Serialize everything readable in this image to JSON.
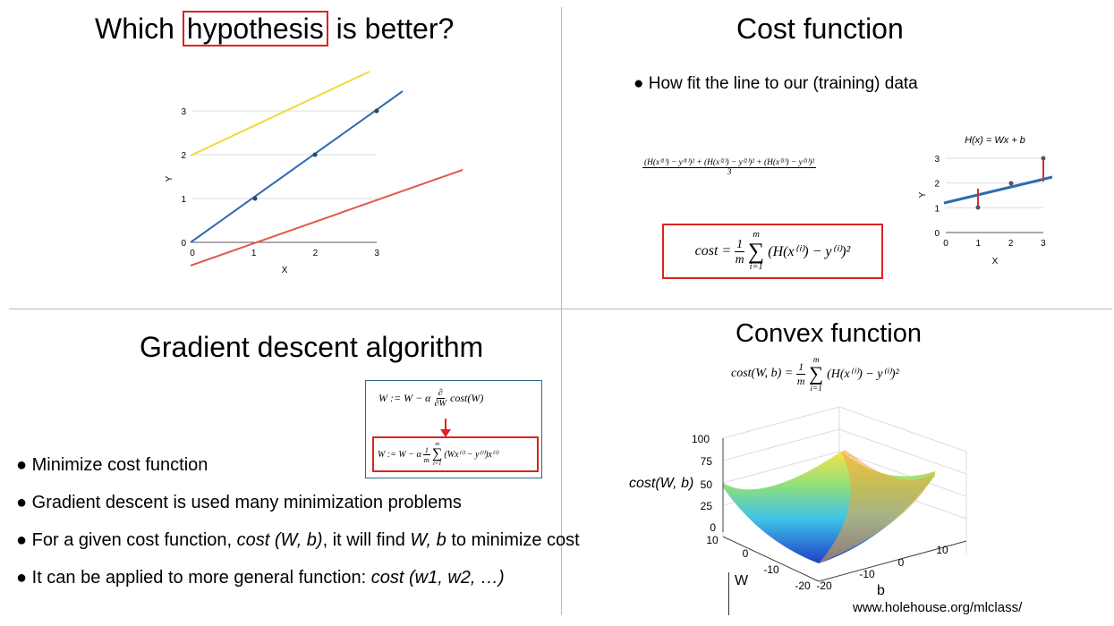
{
  "slides": [
    {
      "title_before": "Which",
      "title_highlight": "hypothesis",
      "title_after": "is better?",
      "plot": {
        "x_label": "X",
        "y_label": "Y",
        "xticks": [
          0,
          1,
          2,
          3
        ],
        "yticks": [
          0,
          1,
          2,
          3
        ]
      }
    },
    {
      "title": "Cost function",
      "bullets": [
        "How fit the line to our (training) data"
      ],
      "mean_formula": {
        "num": "(H(x⁽¹⁾) − y⁽¹⁾)² + (H(x⁽²⁾) − y⁽²⁾)² + (H(x⁽³⁾) − y⁽³⁾)²",
        "den": "3"
      },
      "cost_formula": {
        "lhs": "cost =",
        "num": "1",
        "den": "m",
        "sum": "∑",
        "sum_top": "m",
        "sum_bottom": "i=1",
        "body": "(H(x⁽ⁱ⁾) − y⁽ⁱ⁾)²"
      },
      "plot": {
        "title": "H(x) = Wx + b",
        "x_label": "X",
        "y_label": "Y",
        "xticks": [
          0,
          1,
          2,
          3
        ],
        "yticks": [
          0,
          1,
          2,
          3
        ]
      }
    },
    {
      "title": "Gradient descent algorithm",
      "formula_1": {
        "lhs": "W := W − α",
        "num": "∂",
        "den": "∂W",
        "body": "cost(W)"
      },
      "formula_2": {
        "lhs": "W := W − α",
        "num": "1",
        "den": "m",
        "sum": "∑",
        "sum_top": "m",
        "sum_bottom": "i=1",
        "body": "(Wx⁽ⁱ⁾ − y⁽ⁱ⁾)x⁽ⁱ⁾"
      },
      "bullets": [
        [
          {
            "text": "Minimize cost function",
            "italic": false
          }
        ],
        [
          {
            "text": "Gradient descent is used many minimization problems",
            "italic": false
          }
        ],
        [
          {
            "text": "For a given cost function, ",
            "italic": false
          },
          {
            "text": "cost (W, b)",
            "italic": true
          },
          {
            "text": ", it will find ",
            "italic": false
          },
          {
            "text": "W, b",
            "italic": true
          },
          {
            "text": " to minimize cost",
            "italic": false
          }
        ],
        [
          {
            "text": "It can be applied to more general function: ",
            "italic": false
          },
          {
            "text": "cost (w1, w2, …)",
            "italic": true
          }
        ]
      ]
    },
    {
      "title": "Convex function",
      "formula": {
        "lhs": "cost(W, b) =",
        "num": "1",
        "den": "m",
        "sum": "∑",
        "sum_top": "m",
        "sum_bottom": "i=1",
        "body": "(H(x⁽ⁱ⁾) − y⁽ⁱ⁾)²"
      },
      "plot": {
        "z_label": "cost(W, b)",
        "w_label": "W",
        "b_label": "b",
        "z_ticks": [
          100,
          75,
          50,
          25,
          0
        ],
        "w_ticks": [
          10,
          0,
          -10,
          -20
        ],
        "b_ticks": [
          -20,
          -10,
          0,
          10
        ]
      },
      "source": "www.holehouse.org/mlclass/"
    }
  ]
}
